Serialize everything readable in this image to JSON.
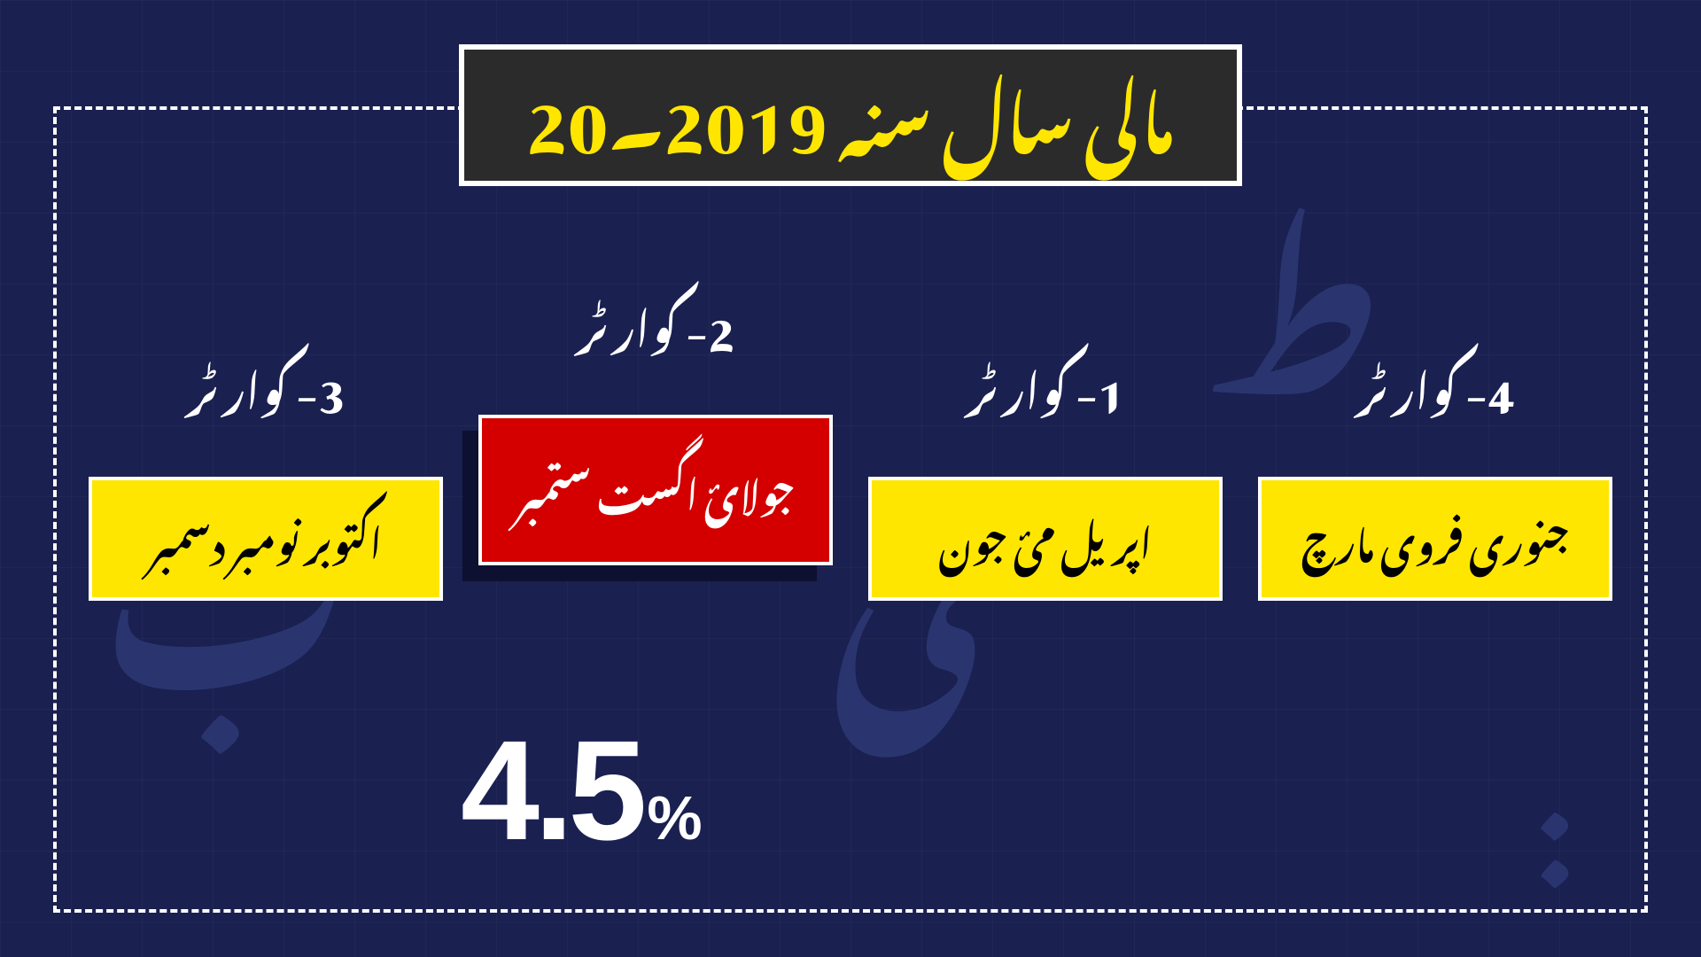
{
  "background_color": "#1a2050",
  "grid_color": "rgba(255,255,255,0.03)",
  "frame_border_color": "#ffffff",
  "title": {
    "text": "مالی سال سنہ 2019۔20",
    "text_color": "#ffe600",
    "box_bg": "#2b2b2b",
    "box_border": "#ffffff",
    "fontsize": 80
  },
  "quarters": [
    {
      "label": "3- کوارٹر",
      "months": "اکتوبر نومبر دسمبر",
      "box_bg": "#ffe600",
      "box_text_color": "#000000",
      "highlighted": false
    },
    {
      "label": "2- کوارٹر",
      "months": "جولائ اگست ستمبر",
      "box_bg": "#d40000",
      "box_text_color": "#ffffff",
      "highlighted": true,
      "value": "4.5",
      "value_suffix": "%"
    },
    {
      "label": "1- کوارٹر",
      "months": "اپریل مئ جون",
      "box_bg": "#ffe600",
      "box_text_color": "#000000",
      "highlighted": false
    },
    {
      "label": "4- کوارٹر",
      "months": "جنوری فروی مارچ",
      "box_bg": "#ffe600",
      "box_text_color": "#000000",
      "highlighted": false
    }
  ],
  "watermarks": [
    "ط",
    "ی",
    "ب",
    ":"
  ]
}
